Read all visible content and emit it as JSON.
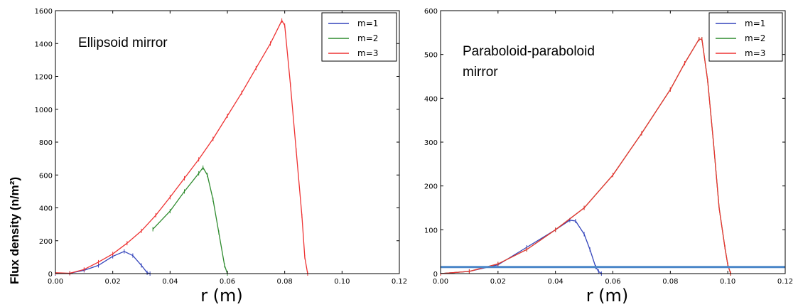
{
  "ylabel": "Flux density (n/m²)",
  "chart_data": [
    {
      "type": "line",
      "annotation": [
        "Ellipsoid mirror"
      ],
      "xlabel": "r (m)",
      "ylabel": "Flux density (n/m²)",
      "xlim": [
        0,
        0.12
      ],
      "ylim": [
        0,
        1600
      ],
      "xticks": [
        "0.00",
        "0.02",
        "0.04",
        "0.06",
        "0.08",
        "0.10",
        "0.12"
      ],
      "yticks": [
        "0",
        "200",
        "400",
        "600",
        "800",
        "1000",
        "1200",
        "1400",
        "1600"
      ],
      "grid": false,
      "legend_position": "top-right",
      "series": [
        {
          "name": "m=1",
          "color": "#3344bb",
          "x": [
            0.0,
            0.005,
            0.01,
            0.015,
            0.02,
            0.024,
            0.027,
            0.03,
            0.032,
            0.033
          ],
          "y": [
            0,
            2,
            20,
            50,
            105,
            135,
            110,
            50,
            5,
            0
          ]
        },
        {
          "name": "m=2",
          "color": "#2e8b2e",
          "x": [
            0.034,
            0.04,
            0.045,
            0.05,
            0.0515,
            0.053,
            0.055,
            0.057,
            0.059,
            0.06
          ],
          "y": [
            270,
            380,
            500,
            610,
            645,
            600,
            450,
            250,
            50,
            0
          ]
        },
        {
          "name": "m=3",
          "color": "#ee3333",
          "x": [
            0.0,
            0.005,
            0.01,
            0.015,
            0.02,
            0.025,
            0.03,
            0.035,
            0.04,
            0.045,
            0.05,
            0.055,
            0.06,
            0.065,
            0.07,
            0.075,
            0.079,
            0.08,
            0.082,
            0.084,
            0.086,
            0.087,
            0.088
          ],
          "y": [
            5,
            2,
            25,
            70,
            120,
            185,
            260,
            355,
            465,
            580,
            695,
            820,
            960,
            1100,
            1250,
            1400,
            1540,
            1510,
            1150,
            750,
            350,
            100,
            0
          ]
        }
      ]
    },
    {
      "type": "line",
      "annotation": [
        "Paraboloid-paraboloid",
        "mirror"
      ],
      "xlabel": "r (m)",
      "xlim": [
        0,
        0.12
      ],
      "ylim": [
        0,
        600
      ],
      "xticks": [
        "0.00",
        "0.02",
        "0.04",
        "0.06",
        "0.08",
        "0.10",
        "0.12"
      ],
      "yticks": [
        "0",
        "100",
        "200",
        "300",
        "400",
        "500",
        "600"
      ],
      "grid": false,
      "legend_position": "top-right",
      "hline": {
        "y": 15,
        "color": "#4a86c8"
      },
      "series": [
        {
          "name": "m=1",
          "color": "#3344bb",
          "x": [
            0.0,
            0.01,
            0.02,
            0.03,
            0.04,
            0.045,
            0.047,
            0.05,
            0.052,
            0.054,
            0.055,
            0.056
          ],
          "y": [
            0,
            5,
            20,
            60,
            100,
            122,
            120,
            90,
            55,
            15,
            5,
            0
          ]
        },
        {
          "name": "m=2",
          "color": "#2e8b2e",
          "x": [
            0.0,
            0.01,
            0.02,
            0.03,
            0.04,
            0.05,
            0.06,
            0.07,
            0.08,
            0.085,
            0.09,
            0.091,
            0.093,
            0.095,
            0.097,
            0.099,
            0.1,
            0.101
          ],
          "y": [
            0,
            5,
            22,
            55,
            100,
            150,
            225,
            320,
            420,
            480,
            535,
            535,
            440,
            300,
            150,
            60,
            20,
            0
          ]
        },
        {
          "name": "m=3",
          "color": "#ee3333",
          "x": [
            0.0,
            0.01,
            0.02,
            0.03,
            0.04,
            0.05,
            0.06,
            0.07,
            0.08,
            0.085,
            0.09,
            0.091,
            0.093,
            0.095,
            0.097,
            0.099,
            0.1,
            0.101
          ],
          "y": [
            0,
            5,
            22,
            55,
            100,
            150,
            225,
            320,
            420,
            480,
            535,
            535,
            440,
            300,
            150,
            60,
            20,
            0
          ]
        }
      ]
    }
  ]
}
